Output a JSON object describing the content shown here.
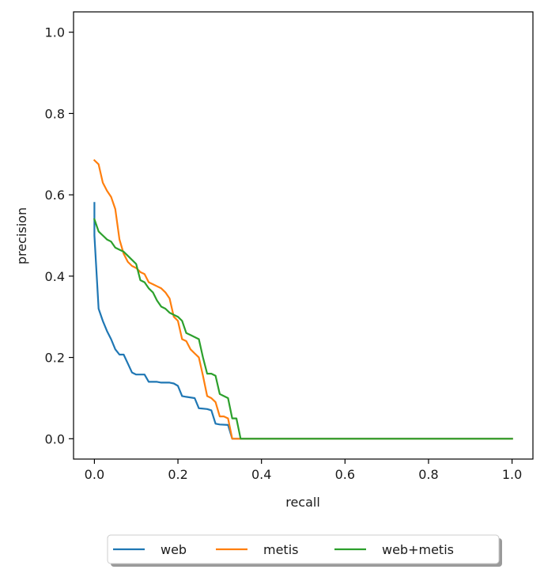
{
  "chart_data": {
    "type": "line",
    "title": "",
    "xlabel": "recall",
    "ylabel": "precision",
    "xlim": [
      -0.05,
      1.05
    ],
    "ylim": [
      -0.05,
      1.05
    ],
    "xticks": [
      0.0,
      0.2,
      0.4,
      0.6,
      0.8,
      1.0
    ],
    "yticks": [
      0.0,
      0.2,
      0.4,
      0.6,
      0.8,
      1.0
    ],
    "xtick_labels": [
      "0.0",
      "0.2",
      "0.4",
      "0.6",
      "0.8",
      "1.0"
    ],
    "ytick_labels": [
      "0.0",
      "0.2",
      "0.4",
      "0.6",
      "0.8",
      "1.0"
    ],
    "grid": false,
    "legend": "bottom-center",
    "series": [
      {
        "name": "web",
        "color": "#1f77b4",
        "x": [
          0.0,
          0.0,
          0.01,
          0.02,
          0.03,
          0.04,
          0.05,
          0.06,
          0.07,
          0.08,
          0.09,
          0.1,
          0.12,
          0.13,
          0.15,
          0.16,
          0.18,
          0.19,
          0.2,
          0.21,
          0.22,
          0.24,
          0.25,
          0.27,
          0.28,
          0.29,
          0.3,
          0.32,
          0.33,
          0.34,
          0.35,
          0.4,
          0.5,
          0.6,
          0.7,
          0.8,
          0.9,
          1.0
        ],
        "y": [
          0.58,
          0.5,
          0.32,
          0.29,
          0.265,
          0.245,
          0.22,
          0.207,
          0.207,
          0.185,
          0.163,
          0.158,
          0.158,
          0.14,
          0.14,
          0.138,
          0.138,
          0.136,
          0.13,
          0.105,
          0.103,
          0.1,
          0.075,
          0.073,
          0.07,
          0.037,
          0.035,
          0.034,
          0.0,
          0.0,
          0.0,
          0.0,
          0.0,
          0.0,
          0.0,
          0.0,
          0.0,
          0.0
        ]
      },
      {
        "name": "metis",
        "color": "#ff7f0e",
        "x": [
          0.0,
          0.01,
          0.02,
          0.03,
          0.04,
          0.05,
          0.06,
          0.07,
          0.08,
          0.09,
          0.1,
          0.11,
          0.12,
          0.13,
          0.14,
          0.15,
          0.16,
          0.17,
          0.18,
          0.19,
          0.2,
          0.21,
          0.22,
          0.23,
          0.24,
          0.25,
          0.26,
          0.27,
          0.28,
          0.29,
          0.3,
          0.31,
          0.32,
          0.33,
          0.34,
          0.35,
          0.4,
          0.5,
          0.6,
          0.7,
          0.8,
          0.9,
          1.0
        ],
        "y": [
          0.685,
          0.675,
          0.63,
          0.61,
          0.595,
          0.565,
          0.49,
          0.455,
          0.435,
          0.425,
          0.42,
          0.41,
          0.405,
          0.385,
          0.38,
          0.375,
          0.37,
          0.36,
          0.345,
          0.3,
          0.29,
          0.245,
          0.24,
          0.22,
          0.21,
          0.2,
          0.155,
          0.105,
          0.1,
          0.09,
          0.055,
          0.055,
          0.05,
          0.0,
          0.0,
          0.0,
          0.0,
          0.0,
          0.0,
          0.0,
          0.0,
          0.0,
          0.0
        ]
      },
      {
        "name": "web+metis",
        "color": "#2ca02c",
        "x": [
          0.0,
          0.01,
          0.02,
          0.03,
          0.04,
          0.05,
          0.06,
          0.07,
          0.08,
          0.09,
          0.1,
          0.11,
          0.12,
          0.13,
          0.14,
          0.15,
          0.16,
          0.17,
          0.18,
          0.19,
          0.2,
          0.21,
          0.22,
          0.23,
          0.24,
          0.25,
          0.26,
          0.27,
          0.28,
          0.29,
          0.3,
          0.31,
          0.32,
          0.33,
          0.34,
          0.35,
          0.4,
          0.5,
          0.6,
          0.7,
          0.8,
          0.9,
          1.0
        ],
        "y": [
          0.54,
          0.51,
          0.5,
          0.49,
          0.485,
          0.47,
          0.465,
          0.46,
          0.45,
          0.44,
          0.43,
          0.39,
          0.385,
          0.37,
          0.36,
          0.34,
          0.325,
          0.32,
          0.31,
          0.305,
          0.3,
          0.29,
          0.26,
          0.255,
          0.25,
          0.245,
          0.2,
          0.16,
          0.16,
          0.155,
          0.11,
          0.105,
          0.1,
          0.05,
          0.05,
          0.0,
          0.0,
          0.0,
          0.0,
          0.0,
          0.0,
          0.0,
          0.0
        ]
      }
    ]
  }
}
